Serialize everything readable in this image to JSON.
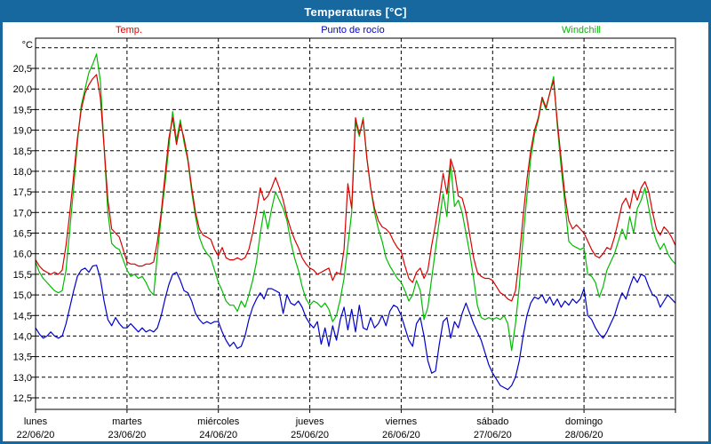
{
  "window": {
    "title": "Temperaturas [°C]"
  },
  "axes": {
    "unit_label": "°C",
    "y_ticks": [
      {
        "label": "20,5",
        "value": 20.5
      },
      {
        "label": "20,0",
        "value": 20.0
      },
      {
        "label": "19,5",
        "value": 19.5
      },
      {
        "label": "19,0",
        "value": 19.0
      },
      {
        "label": "18,5",
        "value": 18.5
      },
      {
        "label": "18,0",
        "value": 18.0
      },
      {
        "label": "17,5",
        "value": 17.5
      },
      {
        "label": "17,0",
        "value": 17.0
      },
      {
        "label": "16,5",
        "value": 16.5
      },
      {
        "label": "16,0",
        "value": 16.0
      },
      {
        "label": "15,5",
        "value": 15.5
      },
      {
        "label": "15,0",
        "value": 15.0
      },
      {
        "label": "14,5",
        "value": 14.5
      },
      {
        "label": "14,0",
        "value": 14.0
      },
      {
        "label": "13,5",
        "value": 13.5
      },
      {
        "label": "13,0",
        "value": 13.0
      },
      {
        "label": "12,5",
        "value": 12.5
      }
    ],
    "days": [
      {
        "name": "lunes",
        "date": "22/06/20"
      },
      {
        "name": "martes",
        "date": "23/06/20"
      },
      {
        "name": "miércoles",
        "date": "24/06/20"
      },
      {
        "name": "jueves",
        "date": "25/06/20"
      },
      {
        "name": "viernes",
        "date": "26/06/20"
      },
      {
        "name": "sábado",
        "date": "27/06/20"
      },
      {
        "name": "domingo",
        "date": "28/06/20"
      }
    ]
  },
  "chart_data": {
    "type": "line",
    "title": "Temperaturas [°C]",
    "xlabel": "",
    "ylabel": "°C",
    "x_unit": "hours since 22/06/20 00:00, 1 sample per hour",
    "x_range_hours": [
      0,
      168
    ],
    "ylim": [
      12.2,
      21.25
    ],
    "y_gridline_step": 0.5,
    "grid": "dashed",
    "legend_position": "top",
    "days": [
      "lunes 22/06/20",
      "martes 23/06/20",
      "miércoles 24/06/20",
      "jueves 25/06/20",
      "viernes 26/06/20",
      "sábado 27/06/20",
      "domingo 28/06/20"
    ],
    "series": [
      {
        "name": "Temp.",
        "color": "#dc0000",
        "values": [
          15.85,
          15.7,
          15.6,
          15.55,
          15.5,
          15.55,
          15.5,
          15.6,
          16.2,
          17.0,
          17.9,
          18.8,
          19.5,
          19.9,
          20.1,
          20.25,
          20.35,
          19.8,
          18.6,
          17.3,
          16.6,
          16.5,
          16.4,
          16.1,
          15.8,
          15.75,
          15.75,
          15.7,
          15.7,
          15.75,
          15.75,
          15.8,
          16.3,
          17.0,
          17.9,
          18.8,
          19.3,
          18.65,
          19.15,
          18.8,
          18.3,
          17.6,
          17.0,
          16.6,
          16.45,
          16.4,
          16.35,
          16.1,
          15.95,
          16.15,
          15.9,
          15.85,
          15.85,
          15.9,
          15.85,
          15.9,
          16.1,
          16.5,
          17.0,
          17.6,
          17.3,
          17.4,
          17.6,
          17.85,
          17.6,
          17.3,
          16.9,
          16.6,
          16.35,
          16.15,
          15.9,
          15.75,
          15.65,
          15.6,
          15.5,
          15.55,
          15.6,
          15.65,
          15.35,
          15.55,
          15.5,
          16.1,
          17.7,
          17.1,
          19.3,
          18.9,
          19.25,
          18.3,
          17.6,
          17.1,
          16.8,
          16.65,
          16.6,
          16.5,
          16.3,
          16.15,
          16.05,
          15.7,
          15.4,
          15.3,
          15.55,
          15.65,
          15.4,
          15.6,
          16.2,
          16.7,
          17.3,
          17.95,
          17.45,
          18.3,
          18.0,
          17.4,
          17.35,
          17.0,
          16.45,
          15.9,
          15.55,
          15.45,
          15.4,
          15.4,
          15.35,
          15.2,
          15.05,
          15.0,
          14.9,
          14.85,
          15.1,
          15.9,
          16.9,
          17.8,
          18.5,
          19.0,
          19.3,
          19.8,
          19.55,
          19.9,
          20.2,
          19.2,
          18.3,
          17.4,
          16.8,
          16.6,
          16.7,
          16.6,
          16.5,
          16.3,
          16.1,
          15.95,
          15.9,
          16.0,
          16.15,
          16.1,
          16.4,
          16.8,
          17.2,
          17.35,
          17.1,
          17.55,
          17.3,
          17.6,
          17.75,
          17.5,
          17.0,
          16.6,
          16.45,
          16.65,
          16.55,
          16.4,
          16.2
        ]
      },
      {
        "name": "Punto de rocío",
        "color": "#0000cc",
        "values": [
          14.2,
          14.05,
          13.95,
          14.0,
          14.1,
          14.0,
          13.95,
          14.0,
          14.3,
          14.7,
          15.1,
          15.45,
          15.6,
          15.65,
          15.55,
          15.7,
          15.72,
          15.4,
          14.85,
          14.4,
          14.25,
          14.45,
          14.3,
          14.2,
          14.2,
          14.3,
          14.2,
          14.1,
          14.2,
          14.1,
          14.15,
          14.1,
          14.2,
          14.5,
          14.9,
          15.25,
          15.5,
          15.55,
          15.35,
          15.1,
          15.05,
          14.85,
          14.55,
          14.4,
          14.3,
          14.35,
          14.3,
          14.35,
          14.35,
          14.1,
          13.9,
          13.75,
          13.85,
          13.7,
          13.75,
          14.0,
          14.4,
          14.7,
          14.9,
          15.05,
          14.9,
          15.15,
          15.15,
          15.1,
          15.05,
          14.55,
          15.0,
          14.8,
          14.75,
          14.85,
          14.7,
          14.45,
          14.3,
          14.2,
          14.35,
          13.8,
          14.2,
          13.75,
          14.25,
          13.9,
          14.4,
          14.7,
          14.15,
          14.65,
          14.1,
          14.75,
          14.2,
          14.15,
          14.45,
          14.2,
          14.3,
          14.5,
          14.25,
          14.6,
          14.75,
          14.7,
          14.5,
          14.2,
          13.9,
          13.75,
          14.3,
          14.45,
          14.0,
          13.4,
          13.1,
          13.15,
          13.8,
          14.35,
          14.45,
          13.95,
          14.35,
          14.2,
          14.55,
          14.8,
          14.55,
          14.3,
          14.1,
          13.9,
          13.6,
          13.3,
          13.1,
          12.95,
          12.8,
          12.75,
          12.7,
          12.8,
          13.0,
          13.4,
          14.0,
          14.5,
          14.8,
          14.95,
          14.9,
          15.0,
          14.8,
          14.95,
          14.75,
          14.9,
          14.7,
          14.85,
          14.75,
          14.9,
          14.8,
          14.9,
          15.15,
          14.5,
          14.4,
          14.2,
          14.05,
          13.95,
          14.1,
          14.3,
          14.5,
          14.8,
          15.05,
          14.9,
          15.2,
          15.45,
          15.3,
          15.5,
          15.45,
          15.2,
          15.0,
          14.95,
          14.7,
          14.85,
          15.0,
          14.9,
          14.8
        ]
      },
      {
        "name": "Windchill",
        "color": "#00bb00",
        "values": [
          15.8,
          15.55,
          15.4,
          15.3,
          15.2,
          15.1,
          15.05,
          15.1,
          15.6,
          16.6,
          17.6,
          18.7,
          19.6,
          20.0,
          20.4,
          20.6,
          20.85,
          20.2,
          18.6,
          17.0,
          16.25,
          16.15,
          16.1,
          15.85,
          15.6,
          15.45,
          15.5,
          15.4,
          15.45,
          15.3,
          15.1,
          15.0,
          16.0,
          16.9,
          17.7,
          18.6,
          19.45,
          18.75,
          19.25,
          18.7,
          18.25,
          17.5,
          16.9,
          16.4,
          16.15,
          16.0,
          15.9,
          15.6,
          15.3,
          15.1,
          14.85,
          14.75,
          14.75,
          14.6,
          14.85,
          14.7,
          15.0,
          15.35,
          15.8,
          16.5,
          17.05,
          16.6,
          17.1,
          17.5,
          17.3,
          17.1,
          16.8,
          16.3,
          15.9,
          15.6,
          15.2,
          14.9,
          14.75,
          14.85,
          14.8,
          14.7,
          14.8,
          14.65,
          14.35,
          14.5,
          14.9,
          15.4,
          16.2,
          17.0,
          19.2,
          18.85,
          19.3,
          18.3,
          17.6,
          17.0,
          16.6,
          16.3,
          15.9,
          15.7,
          15.55,
          15.4,
          15.3,
          15.1,
          14.85,
          15.0,
          15.35,
          15.1,
          14.4,
          14.7,
          15.4,
          16.1,
          16.8,
          17.45,
          16.9,
          18.2,
          17.15,
          17.3,
          17.0,
          16.5,
          16.0,
          15.4,
          14.75,
          14.45,
          14.4,
          14.45,
          14.4,
          14.45,
          14.4,
          14.5,
          14.3,
          13.65,
          14.3,
          15.2,
          16.4,
          17.4,
          18.3,
          18.9,
          19.25,
          19.75,
          19.5,
          19.9,
          20.3,
          19.1,
          18.1,
          17.2,
          16.3,
          16.2,
          16.15,
          16.1,
          16.15,
          15.5,
          15.45,
          15.3,
          14.95,
          15.2,
          15.6,
          15.8,
          16.0,
          16.3,
          16.6,
          16.35,
          16.9,
          16.5,
          17.1,
          17.3,
          17.6,
          17.1,
          16.6,
          16.3,
          16.1,
          16.25,
          16.0,
          15.85,
          15.75
        ]
      }
    ]
  },
  "colors": {
    "titlebar": "#17689f",
    "window_border": "#17689f",
    "plot_frame": "#000000",
    "grid": "#000000",
    "background": "#ffffff"
  }
}
